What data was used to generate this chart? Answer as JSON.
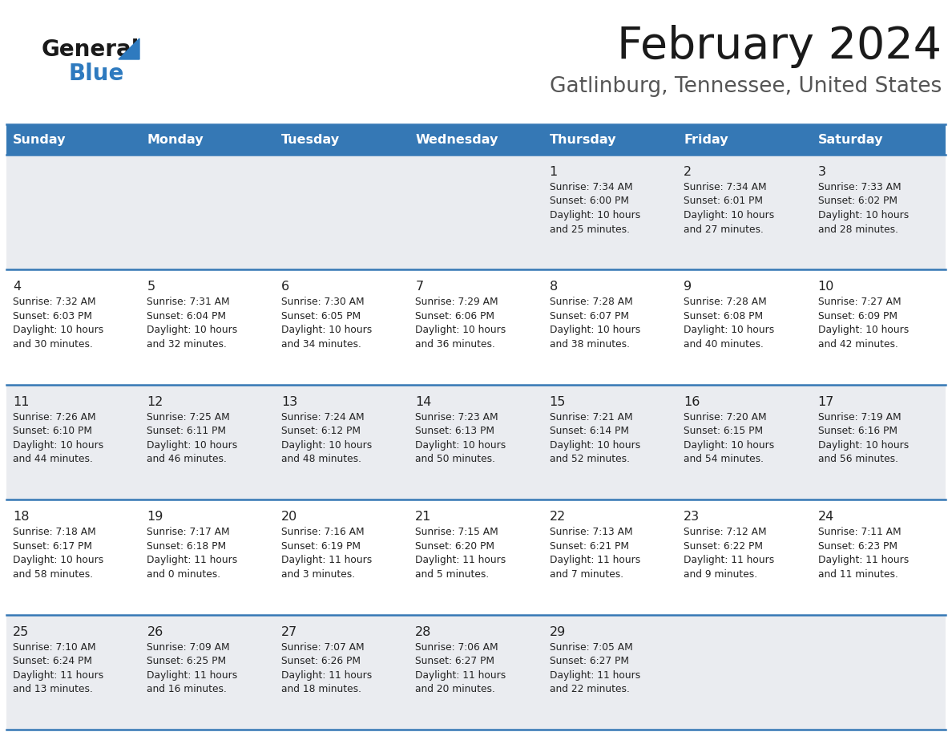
{
  "title": "February 2024",
  "subtitle": "Gatlinburg, Tennessee, United States",
  "days_of_week": [
    "Sunday",
    "Monday",
    "Tuesday",
    "Wednesday",
    "Thursday",
    "Friday",
    "Saturday"
  ],
  "header_bg": "#3578b5",
  "header_text": "#ffffff",
  "row_bg_odd": "#eaecf0",
  "row_bg_even": "#ffffff",
  "cell_text": "#333333",
  "border_color": "#3578b5",
  "title_color": "#1a1a1a",
  "subtitle_color": "#555555",
  "logo_general_color": "#1a1a1a",
  "logo_blue_color": "#2e7abf",
  "logo_triangle_color": "#2e7abf",
  "calendar": [
    [
      null,
      null,
      null,
      null,
      {
        "day": 1,
        "sunrise": "7:34 AM",
        "sunset": "6:00 PM",
        "daylight": "10 hours and 25 minutes."
      },
      {
        "day": 2,
        "sunrise": "7:34 AM",
        "sunset": "6:01 PM",
        "daylight": "10 hours and 27 minutes."
      },
      {
        "day": 3,
        "sunrise": "7:33 AM",
        "sunset": "6:02 PM",
        "daylight": "10 hours and 28 minutes."
      }
    ],
    [
      {
        "day": 4,
        "sunrise": "7:32 AM",
        "sunset": "6:03 PM",
        "daylight": "10 hours and 30 minutes."
      },
      {
        "day": 5,
        "sunrise": "7:31 AM",
        "sunset": "6:04 PM",
        "daylight": "10 hours and 32 minutes."
      },
      {
        "day": 6,
        "sunrise": "7:30 AM",
        "sunset": "6:05 PM",
        "daylight": "10 hours and 34 minutes."
      },
      {
        "day": 7,
        "sunrise": "7:29 AM",
        "sunset": "6:06 PM",
        "daylight": "10 hours and 36 minutes."
      },
      {
        "day": 8,
        "sunrise": "7:28 AM",
        "sunset": "6:07 PM",
        "daylight": "10 hours and 38 minutes."
      },
      {
        "day": 9,
        "sunrise": "7:28 AM",
        "sunset": "6:08 PM",
        "daylight": "10 hours and 40 minutes."
      },
      {
        "day": 10,
        "sunrise": "7:27 AM",
        "sunset": "6:09 PM",
        "daylight": "10 hours and 42 minutes."
      }
    ],
    [
      {
        "day": 11,
        "sunrise": "7:26 AM",
        "sunset": "6:10 PM",
        "daylight": "10 hours and 44 minutes."
      },
      {
        "day": 12,
        "sunrise": "7:25 AM",
        "sunset": "6:11 PM",
        "daylight": "10 hours and 46 minutes."
      },
      {
        "day": 13,
        "sunrise": "7:24 AM",
        "sunset": "6:12 PM",
        "daylight": "10 hours and 48 minutes."
      },
      {
        "day": 14,
        "sunrise": "7:23 AM",
        "sunset": "6:13 PM",
        "daylight": "10 hours and 50 minutes."
      },
      {
        "day": 15,
        "sunrise": "7:21 AM",
        "sunset": "6:14 PM",
        "daylight": "10 hours and 52 minutes."
      },
      {
        "day": 16,
        "sunrise": "7:20 AM",
        "sunset": "6:15 PM",
        "daylight": "10 hours and 54 minutes."
      },
      {
        "day": 17,
        "sunrise": "7:19 AM",
        "sunset": "6:16 PM",
        "daylight": "10 hours and 56 minutes."
      }
    ],
    [
      {
        "day": 18,
        "sunrise": "7:18 AM",
        "sunset": "6:17 PM",
        "daylight": "10 hours and 58 minutes."
      },
      {
        "day": 19,
        "sunrise": "7:17 AM",
        "sunset": "6:18 PM",
        "daylight": "11 hours and 0 minutes."
      },
      {
        "day": 20,
        "sunrise": "7:16 AM",
        "sunset": "6:19 PM",
        "daylight": "11 hours and 3 minutes."
      },
      {
        "day": 21,
        "sunrise": "7:15 AM",
        "sunset": "6:20 PM",
        "daylight": "11 hours and 5 minutes."
      },
      {
        "day": 22,
        "sunrise": "7:13 AM",
        "sunset": "6:21 PM",
        "daylight": "11 hours and 7 minutes."
      },
      {
        "day": 23,
        "sunrise": "7:12 AM",
        "sunset": "6:22 PM",
        "daylight": "11 hours and 9 minutes."
      },
      {
        "day": 24,
        "sunrise": "7:11 AM",
        "sunset": "6:23 PM",
        "daylight": "11 hours and 11 minutes."
      }
    ],
    [
      {
        "day": 25,
        "sunrise": "7:10 AM",
        "sunset": "6:24 PM",
        "daylight": "11 hours and 13 minutes."
      },
      {
        "day": 26,
        "sunrise": "7:09 AM",
        "sunset": "6:25 PM",
        "daylight": "11 hours and 16 minutes."
      },
      {
        "day": 27,
        "sunrise": "7:07 AM",
        "sunset": "6:26 PM",
        "daylight": "11 hours and 18 minutes."
      },
      {
        "day": 28,
        "sunrise": "7:06 AM",
        "sunset": "6:27 PM",
        "daylight": "11 hours and 20 minutes."
      },
      {
        "day": 29,
        "sunrise": "7:05 AM",
        "sunset": "6:27 PM",
        "daylight": "11 hours and 22 minutes."
      },
      null,
      null
    ]
  ]
}
